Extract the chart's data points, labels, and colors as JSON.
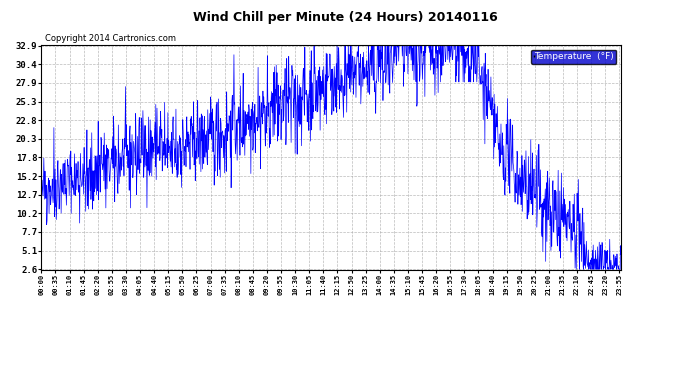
{
  "title": "Wind Chill per Minute (24 Hours) 20140116",
  "copyright": "Copyright 2014 Cartronics.com",
  "legend_label": "Temperature  (°F)",
  "line_color": "#0000ff",
  "background_color": "#ffffff",
  "grid_color": "#aaaaaa",
  "yticks": [
    2.6,
    5.1,
    7.7,
    10.2,
    12.7,
    15.2,
    17.8,
    20.3,
    22.8,
    25.3,
    27.9,
    30.4,
    32.9
  ],
  "ymin": 2.6,
  "ymax": 32.9,
  "xtick_labels": [
    "00:00",
    "00:35",
    "01:10",
    "01:45",
    "02:20",
    "02:55",
    "03:30",
    "04:05",
    "04:40",
    "05:15",
    "05:50",
    "06:25",
    "07:00",
    "07:35",
    "08:10",
    "08:45",
    "09:20",
    "09:55",
    "10:30",
    "11:05",
    "11:40",
    "12:15",
    "12:50",
    "13:25",
    "14:00",
    "14:35",
    "15:10",
    "15:45",
    "16:20",
    "16:55",
    "17:30",
    "18:05",
    "18:40",
    "19:15",
    "19:50",
    "20:25",
    "21:00",
    "21:35",
    "22:10",
    "22:45",
    "23:20",
    "23:55"
  ]
}
